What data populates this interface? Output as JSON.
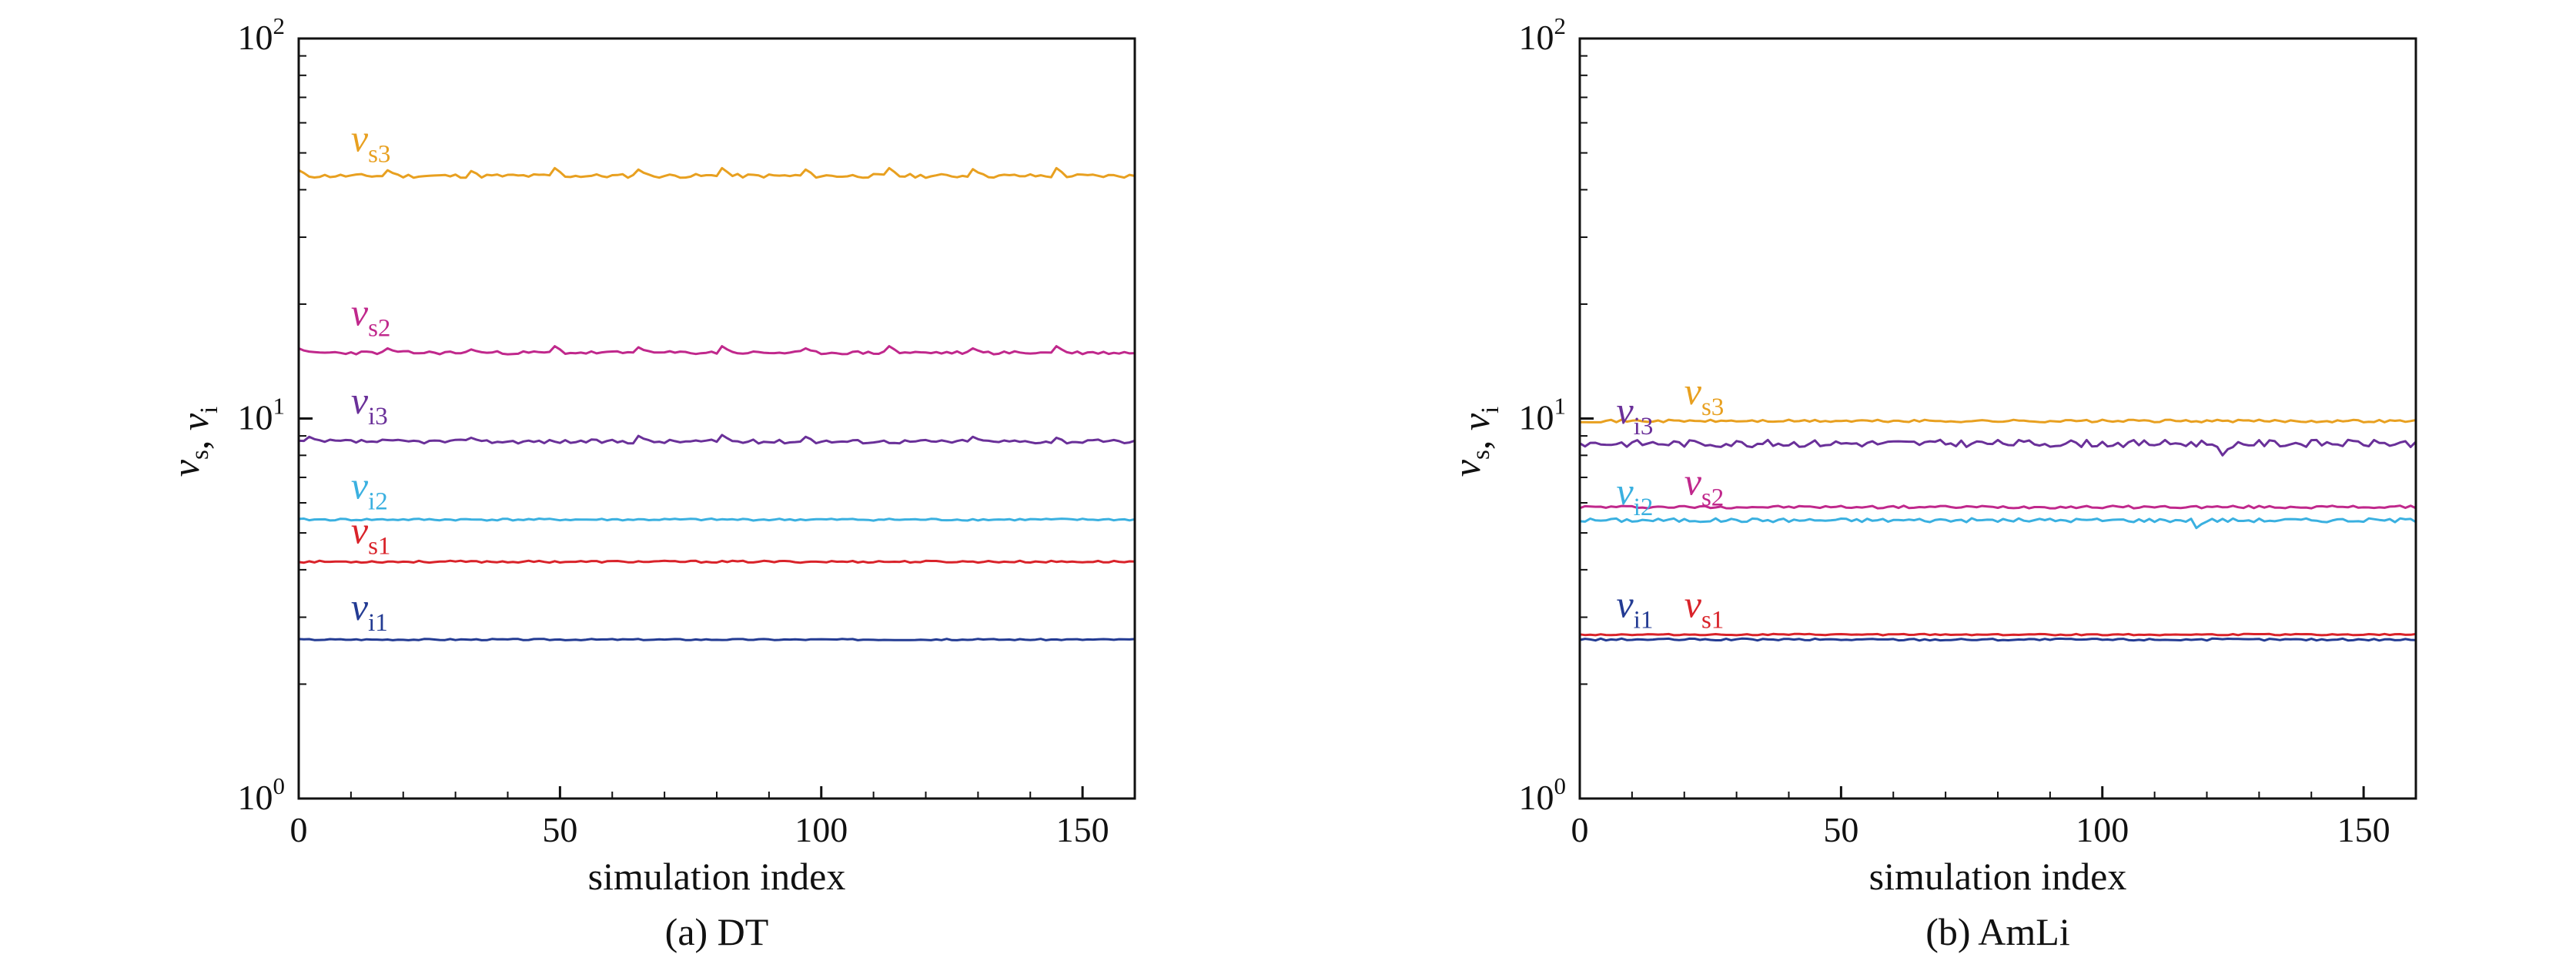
{
  "chart_data": [
    {
      "type": "line",
      "caption": "(a) DT",
      "xlabel": "simulation index",
      "ylabel": {
        "parts": [
          [
            "v",
            "s"
          ],
          ", ",
          [
            "v",
            "i"
          ]
        ]
      },
      "yscale": "log",
      "xlim": [
        0,
        160
      ],
      "ylim": [
        1,
        100
      ],
      "xticks": [
        0,
        50,
        100,
        150
      ],
      "yticks": [
        {
          "value": 1,
          "base": "10",
          "exp": "0"
        },
        {
          "value": 10,
          "base": "10",
          "exp": "1"
        },
        {
          "value": 100,
          "base": "10",
          "exp": "2"
        }
      ],
      "grid": false,
      "series": [
        {
          "name": "vs3",
          "label_base": "v",
          "label_sub": "s3",
          "label_at": [
            10,
            50.5
          ],
          "color": "#E8A020",
          "level": 43.5,
          "wiggle": 0.012,
          "seed": 11,
          "spikes": [
            [
              0,
              45.0
            ],
            [
              17,
              45.0
            ],
            [
              33,
              44.8
            ],
            [
              49,
              45.6
            ],
            [
              65,
              45.2
            ],
            [
              81,
              45.6
            ],
            [
              97,
              45.2
            ],
            [
              113,
              45.6
            ],
            [
              129,
              45.3
            ],
            [
              145,
              45.6
            ]
          ]
        },
        {
          "name": "vs2",
          "label_base": "v",
          "label_sub": "s2",
          "label_at": [
            10,
            17.6
          ],
          "color": "#C0288C",
          "level": 14.9,
          "wiggle": 0.01,
          "seed": 23,
          "spikes": [
            [
              0,
              15.3
            ],
            [
              17,
              15.3
            ],
            [
              33,
              15.2
            ],
            [
              49,
              15.5
            ],
            [
              65,
              15.4
            ],
            [
              81,
              15.5
            ],
            [
              97,
              15.3
            ],
            [
              113,
              15.5
            ],
            [
              129,
              15.3
            ],
            [
              145,
              15.5
            ]
          ]
        },
        {
          "name": "vi3",
          "label_base": "v",
          "label_sub": "i3",
          "label_at": [
            10,
            10.3
          ],
          "color": "#6A3099",
          "level": 8.7,
          "wiggle": 0.012,
          "seed": 37,
          "spikes": [
            [
              2,
              8.95
            ],
            [
              33,
              8.9
            ],
            [
              65,
              9.0
            ],
            [
              81,
              9.05
            ],
            [
              97,
              8.95
            ],
            [
              129,
              8.95
            ],
            [
              145,
              8.9
            ]
          ]
        },
        {
          "name": "vi2",
          "label_base": "v",
          "label_sub": "i2",
          "label_at": [
            10,
            6.15
          ],
          "color": "#3AB0E0",
          "level": 5.42,
          "wiggle": 0.006,
          "seed": 41,
          "spikes": []
        },
        {
          "name": "vs1",
          "label_base": "v",
          "label_sub": "s1",
          "label_at": [
            10,
            4.7
          ],
          "color": "#D9232A",
          "level": 4.2,
          "wiggle": 0.006,
          "seed": 53,
          "spikes": []
        },
        {
          "name": "vi1",
          "label_base": "v",
          "label_sub": "i1",
          "label_at": [
            10,
            2.95
          ],
          "color": "#233B93",
          "level": 2.62,
          "wiggle": 0.004,
          "seed": 67,
          "spikes": []
        }
      ]
    },
    {
      "type": "line",
      "caption": "(b) AmLi",
      "xlabel": "simulation index",
      "ylabel": {
        "parts": [
          [
            "v",
            "s"
          ],
          ", ",
          [
            "v",
            "i"
          ]
        ]
      },
      "yscale": "log",
      "xlim": [
        0,
        160
      ],
      "ylim": [
        1,
        100
      ],
      "xticks": [
        0,
        50,
        100,
        150
      ],
      "yticks": [
        {
          "value": 1,
          "base": "10",
          "exp": "0"
        },
        {
          "value": 10,
          "base": "10",
          "exp": "1"
        },
        {
          "value": 100,
          "base": "10",
          "exp": "2"
        }
      ],
      "grid": false,
      "series": [
        {
          "name": "vs3",
          "label_base": "v",
          "label_sub": "s3",
          "label_at": [
            20,
            10.9
          ],
          "color": "#E8A020",
          "level": 9.85,
          "wiggle": 0.008,
          "seed": 71,
          "spikes": []
        },
        {
          "name": "vi3",
          "label_base": "v",
          "label_sub": "i3",
          "label_at": [
            7,
            9.7
          ],
          "color": "#6A3099",
          "level": 8.6,
          "wiggle": 0.022,
          "seed": 83,
          "spikes": [
            [
              123,
              8.0
            ]
          ]
        },
        {
          "name": "vs2",
          "label_base": "v",
          "label_sub": "s2",
          "label_at": [
            20,
            6.3
          ],
          "color": "#C0288C",
          "level": 5.85,
          "wiggle": 0.008,
          "seed": 97,
          "spikes": []
        },
        {
          "name": "vi2",
          "label_base": "v",
          "label_sub": "i2",
          "label_at": [
            7,
            5.95
          ],
          "color": "#3AB0E0",
          "level": 5.4,
          "wiggle": 0.012,
          "seed": 101,
          "spikes": [
            [
              118,
              5.15
            ]
          ]
        },
        {
          "name": "vs1",
          "label_base": "v",
          "label_sub": "s1",
          "label_at": [
            20,
            3.0
          ],
          "color": "#D9232A",
          "level": 2.7,
          "wiggle": 0.004,
          "seed": 113,
          "spikes": []
        },
        {
          "name": "vi1",
          "label_base": "v",
          "label_sub": "i1",
          "label_at": [
            7,
            3.0
          ],
          "color": "#233B93",
          "level": 2.62,
          "wiggle": 0.006,
          "seed": 127,
          "spikes": []
        }
      ]
    }
  ]
}
